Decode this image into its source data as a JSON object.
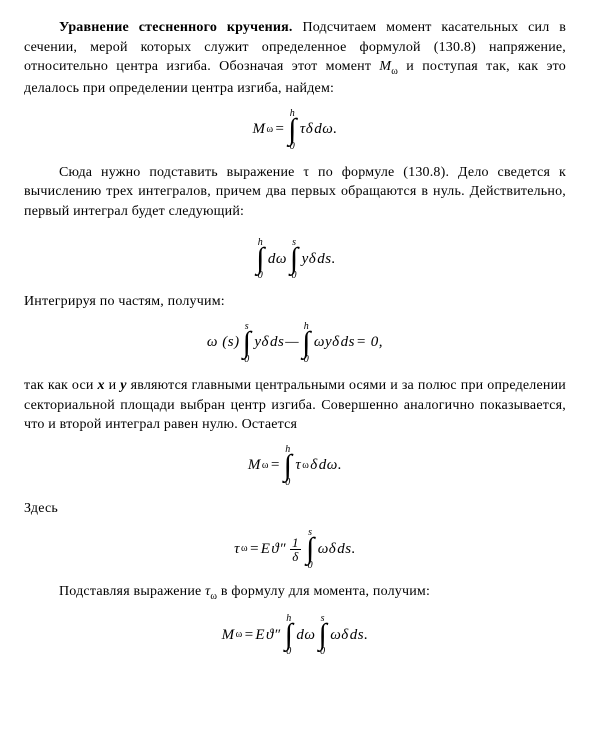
{
  "title": "Уравнение стесненного кручения.",
  "p1a": "Уравнение стесненного кручения.",
  "p1b": " Подсчитаем момент касательных сил в сечении, мерой которых служит определенное формулой (130.8) напряжение, относительно центра изгиба. Обозначая этот момент ",
  "p1c": " и поступая так, как это делалось при определении центра изгиба, найдем:",
  "eq1": {
    "lhs_M": "M",
    "lhs_sub": "ω",
    "eq": "=",
    "upper": "h",
    "lower": "0",
    "body": "τδ ",
    "d": "dω."
  },
  "p2": "Сюда нужно подставить выражение τ по формуле (130.8). Дело сведется к вычислению трех интегралов, причем два первых обращаются в нуль. Действительно, первый интеграл будет следующий:",
  "eq2": {
    "u1": "h",
    "l1": "0",
    "b1": "dω",
    "u2": "s",
    "l2": "0",
    "b2": "yδ ",
    "d2": "ds."
  },
  "p3": "Интегрируя по частям, получим:",
  "eq3": {
    "pre": "ω (s)",
    "u1": "s",
    "l1": "0",
    "b1": "yδ ",
    "d1": "ds",
    "minus": " — ",
    "u2": "h",
    "l2": "0",
    "b2": "ωyδ ",
    "d2": "ds",
    "tail": "= 0,"
  },
  "p4a": "так как оси ",
  "p4b": " и ",
  "p4c": " являются главными центральными осями и за полюс при определении секториальной площади выбран центр изгиба. Совершенно аналогично показывается, что и второй интеграл равен нулю. Остается",
  "axis_x": "x",
  "axis_y": "y",
  "eq4": {
    "lhs_M": "M",
    "lhs_sub": "ω",
    "eq": "=",
    "u": "h",
    "l": "0",
    "tau": "τ",
    "tsub": "ω",
    "body": "δ ",
    "d": "dω."
  },
  "p5": "Здесь",
  "eq5": {
    "tau": "τ",
    "tsub": "ω",
    "eq": "= ",
    "E": "E",
    "theta": "ϑ",
    "pp": "″",
    "ftop": "1",
    "fbot": "δ",
    "u": "s",
    "l": "0",
    "body": "ωδ ",
    "d": "ds."
  },
  "p6a": "Подставляя выражение ",
  "p6b": " в формулу для момента, получим:",
  "tau_w": "τ",
  "tau_w_sub": "ω",
  "eq6": {
    "lhs_M": "M",
    "lhs_sub": "ω",
    "eq": "= ",
    "E": "E",
    "theta": "ϑ",
    "pp": "″",
    "u1": "h",
    "l1": "0",
    "b1": "dω",
    "u2": "s",
    "l2": "0",
    "b2": "ωδ ",
    "d2": "ds."
  },
  "M_var": "M",
  "M_sub": "ω"
}
